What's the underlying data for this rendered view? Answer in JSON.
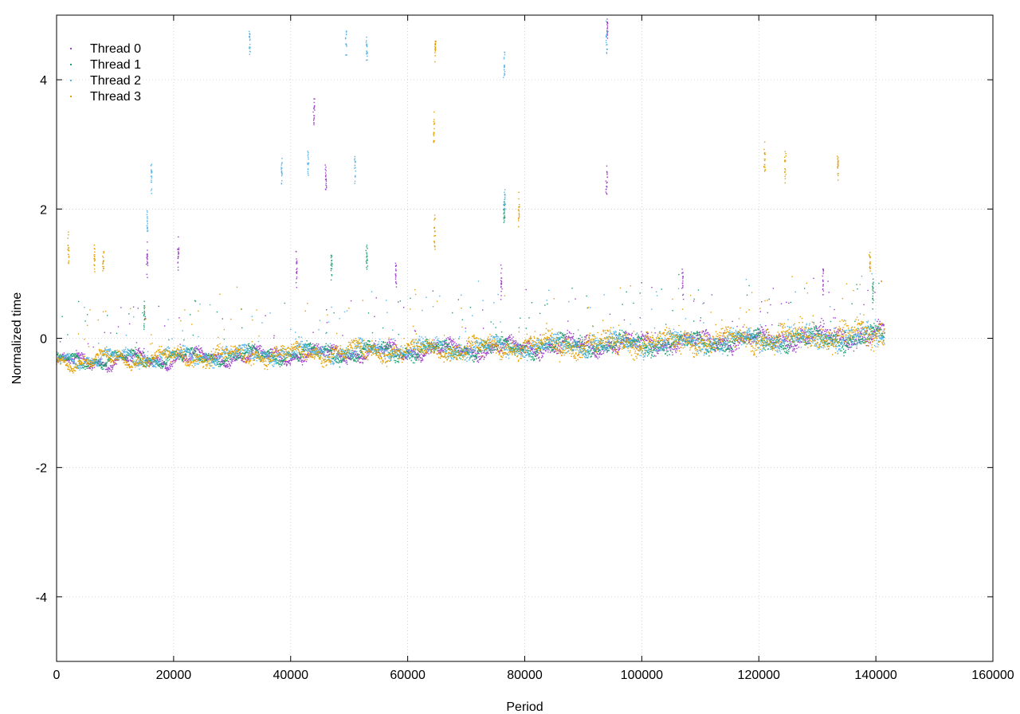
{
  "chart_data": {
    "type": "scatter",
    "title": "",
    "xlabel": "Period",
    "ylabel": "Normalized time",
    "xlim": [
      0,
      160000
    ],
    "ylim": [
      -5,
      5
    ],
    "x_ticks": [
      0,
      20000,
      40000,
      60000,
      80000,
      100000,
      120000,
      140000,
      160000
    ],
    "x_tick_labels": [
      "0",
      "20000",
      "40000",
      "60000",
      "80000",
      "100000",
      "120000",
      "140000",
      "160000"
    ],
    "y_ticks": [
      -4,
      -2,
      0,
      2,
      4
    ],
    "y_tick_labels": [
      "-4",
      "-2",
      "0",
      "2",
      "4"
    ],
    "grid": true,
    "legend_position": "top-left",
    "series": [
      {
        "name": "Thread 0",
        "color": "#9b3fc7",
        "x_range": [
          0,
          141500
        ],
        "baseline_start": -0.38,
        "baseline_end": 0.05,
        "spread": 0.12,
        "outliers": [
          {
            "x": 15500,
            "y": 1.2
          },
          {
            "x": 20800,
            "y": 1.3
          },
          {
            "x": 41000,
            "y": 1.1
          },
          {
            "x": 44000,
            "y": 3.5
          },
          {
            "x": 46000,
            "y": 2.5
          },
          {
            "x": 58000,
            "y": 1.0
          },
          {
            "x": 76000,
            "y": 0.9
          },
          {
            "x": 94000,
            "y": 2.4
          },
          {
            "x": 94100,
            "y": 4.8
          },
          {
            "x": 107000,
            "y": 0.9
          },
          {
            "x": 131000,
            "y": 0.9
          }
        ]
      },
      {
        "name": "Thread 1",
        "color": "#1b9e6e",
        "x_range": [
          0,
          141500
        ],
        "baseline_start": -0.35,
        "baseline_end": 0.02,
        "spread": 0.12,
        "outliers": [
          {
            "x": 15000,
            "y": 0.4
          },
          {
            "x": 47000,
            "y": 1.2
          },
          {
            "x": 53000,
            "y": 1.3
          },
          {
            "x": 76500,
            "y": 2.0
          },
          {
            "x": 139500,
            "y": 0.7
          }
        ]
      },
      {
        "name": "Thread 2",
        "color": "#56b4e9",
        "x_range": [
          0,
          141500
        ],
        "baseline_start": -0.33,
        "baseline_end": 0.03,
        "spread": 0.13,
        "outliers": [
          {
            "x": 15500,
            "y": 1.8
          },
          {
            "x": 16200,
            "y": 2.5
          },
          {
            "x": 33000,
            "y": 4.6
          },
          {
            "x": 38500,
            "y": 2.6
          },
          {
            "x": 43000,
            "y": 2.7
          },
          {
            "x": 49500,
            "y": 4.6
          },
          {
            "x": 51000,
            "y": 2.6
          },
          {
            "x": 53000,
            "y": 4.5
          },
          {
            "x": 76500,
            "y": 4.2
          },
          {
            "x": 76600,
            "y": 2.2
          },
          {
            "x": 94000,
            "y": 4.6
          }
        ]
      },
      {
        "name": "Thread 3",
        "color": "#e69f00",
        "x_range": [
          0,
          141500
        ],
        "baseline_start": -0.36,
        "baseline_end": 0.06,
        "spread": 0.18,
        "outliers": [
          {
            "x": 2000,
            "y": 1.4
          },
          {
            "x": 6500,
            "y": 1.2
          },
          {
            "x": 8000,
            "y": 1.2
          },
          {
            "x": 64500,
            "y": 3.2
          },
          {
            "x": 64600,
            "y": 1.6
          },
          {
            "x": 64700,
            "y": 4.5
          },
          {
            "x": 79000,
            "y": 2.0
          },
          {
            "x": 121000,
            "y": 2.8
          },
          {
            "x": 124500,
            "y": 2.7
          },
          {
            "x": 133500,
            "y": 2.7
          },
          {
            "x": 139000,
            "y": 1.2
          }
        ]
      }
    ]
  }
}
